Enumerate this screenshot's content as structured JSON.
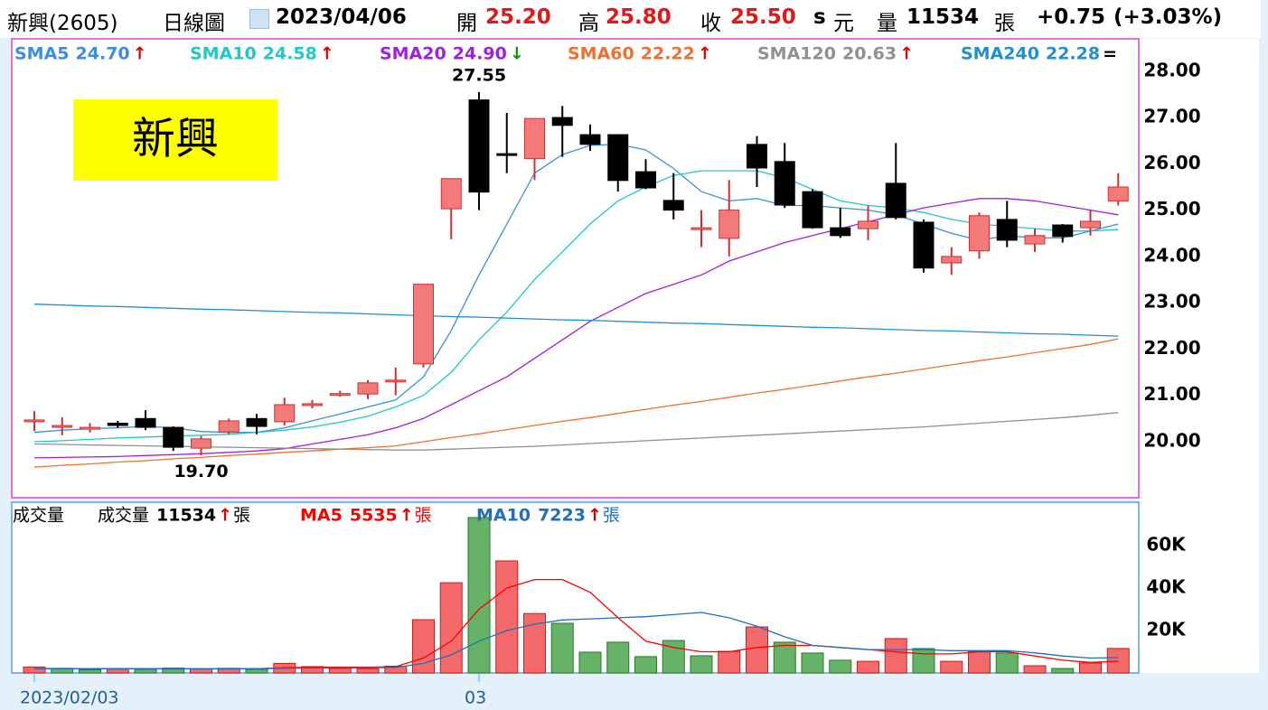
{
  "header": {
    "name": "新興(2605)",
    "period": "日線圖",
    "date": "2023/04/06",
    "open_label": "開",
    "open": "25.20",
    "high_label": "高",
    "high": "25.80",
    "close_label": "收",
    "close": "25.50",
    "s": "s",
    "currency": "元",
    "volume_label": "量",
    "volume": "11534",
    "unit": "張",
    "change": "+0.75",
    "change_pct": "(+3.03%)"
  },
  "chart_data": [
    {
      "type": "candlestick",
      "title": "新興",
      "open": [
        20.45,
        20.33,
        20.29,
        20.4,
        20.5,
        20.31,
        19.86,
        20.21,
        20.5,
        20.43,
        20.78,
        21.0,
        21.03,
        21.31,
        21.68,
        25.03,
        27.38,
        26.2,
        26.11,
        27.0,
        26.63,
        26.63,
        25.83,
        25.21,
        24.6,
        24.39,
        26.42,
        26.05,
        25.4,
        24.62,
        24.6,
        25.58,
        24.74,
        23.86,
        24.12,
        24.8,
        24.27,
        24.68,
        24.62,
        25.2
      ],
      "high": [
        20.66,
        20.53,
        20.4,
        20.45,
        20.68,
        20.33,
        20.12,
        20.5,
        20.6,
        20.95,
        20.9,
        21.1,
        21.33,
        21.6,
        23.4,
        25.68,
        27.55,
        27.1,
        26.98,
        27.25,
        26.85,
        26.63,
        26.1,
        25.8,
        25.0,
        25.65,
        26.6,
        26.45,
        25.45,
        25.05,
        25.1,
        26.45,
        24.8,
        24.2,
        24.95,
        25.2,
        24.6,
        24.7,
        25.0,
        25.8
      ],
      "low": [
        20.23,
        20.14,
        20.2,
        20.3,
        20.25,
        19.8,
        19.7,
        20.16,
        20.16,
        20.35,
        20.72,
        20.97,
        20.92,
        21.0,
        21.6,
        24.37,
        25.0,
        25.8,
        25.65,
        26.15,
        26.28,
        25.4,
        25.45,
        24.8,
        24.2,
        24.0,
        25.5,
        25.05,
        24.6,
        24.4,
        24.35,
        24.8,
        23.65,
        23.6,
        23.95,
        24.2,
        24.1,
        24.3,
        24.45,
        25.1
      ],
      "close": [
        20.45,
        20.33,
        20.29,
        20.35,
        20.31,
        19.88,
        20.06,
        20.45,
        20.33,
        20.8,
        20.8,
        21.02,
        21.27,
        21.31,
        23.4,
        25.68,
        25.39,
        26.18,
        26.98,
        26.83,
        26.42,
        25.64,
        25.48,
        25.0,
        24.6,
        25.0,
        25.91,
        25.11,
        24.62,
        24.45,
        24.76,
        24.84,
        23.75,
        24.0,
        24.88,
        24.35,
        24.45,
        24.43,
        24.76,
        25.5
      ],
      "up_color": "#f47a7a",
      "up_edge": "#d03030",
      "down_color": "#000000",
      "ylim": [
        18.79,
        28.66
      ],
      "yticks": [
        {
          "value": 20,
          "label": "20.00"
        },
        {
          "value": 21,
          "label": "21.00"
        },
        {
          "value": 22,
          "label": "22.00"
        },
        {
          "value": 23,
          "label": "23.00"
        },
        {
          "value": 24,
          "label": "24.00"
        },
        {
          "value": 25,
          "label": "25.00"
        },
        {
          "value": 26,
          "label": "26.00"
        },
        {
          "value": 27,
          "label": "27.00"
        },
        {
          "value": 28,
          "label": "28.00"
        }
      ],
      "annotations": [
        {
          "label": "27.55",
          "value": 27.55
        },
        {
          "label": "19.70",
          "value": 19.7
        }
      ],
      "series": [
        {
          "name": "SMA5",
          "color": "#3c8ee0",
          "value_label": "24.70",
          "arrow": "↑",
          "arrow_color": "#e00000",
          "values": [
            20.2,
            20.25,
            20.28,
            20.3,
            20.33,
            20.3,
            20.22,
            20.2,
            20.2,
            20.3,
            20.45,
            20.6,
            20.75,
            20.9,
            21.4,
            22.4,
            23.6,
            24.7,
            25.8,
            26.2,
            26.4,
            26.42,
            26.3,
            25.9,
            25.4,
            25.2,
            25.25,
            25.1,
            25.1,
            25.05,
            25.0,
            24.9,
            24.7,
            24.5,
            24.35,
            24.45,
            24.4,
            24.4,
            24.55,
            24.7
          ]
        },
        {
          "name": "SMA10",
          "color": "#20c8c8",
          "value_label": "24.58",
          "arrow": "↑",
          "arrow_color": "#e00000",
          "values": [
            20.0,
            20.02,
            20.05,
            20.08,
            20.1,
            20.12,
            20.14,
            20.16,
            20.2,
            20.25,
            20.32,
            20.42,
            20.55,
            20.75,
            21.0,
            21.5,
            22.2,
            22.8,
            23.5,
            24.1,
            24.7,
            25.2,
            25.5,
            25.75,
            25.85,
            25.85,
            25.85,
            25.7,
            25.45,
            25.2,
            25.1,
            25.05,
            24.95,
            24.8,
            24.7,
            24.65,
            24.6,
            24.55,
            24.55,
            24.58
          ]
        },
        {
          "name": "SMA20",
          "color": "#a020e0",
          "value_label": "24.90",
          "arrow": "↓",
          "arrow_color": "#109010",
          "values": [
            19.65,
            19.66,
            19.67,
            19.68,
            19.7,
            19.72,
            19.74,
            19.77,
            19.8,
            19.85,
            19.95,
            20.05,
            20.15,
            20.3,
            20.5,
            20.8,
            21.1,
            21.4,
            21.8,
            22.2,
            22.6,
            22.9,
            23.2,
            23.4,
            23.6,
            23.9,
            24.1,
            24.3,
            24.45,
            24.6,
            24.75,
            24.9,
            25.05,
            25.15,
            25.25,
            25.25,
            25.2,
            25.1,
            25.0,
            24.9
          ]
        },
        {
          "name": "SMA60",
          "color": "#f07030",
          "value_label": "22.22",
          "arrow": "↑",
          "arrow_color": "#e00000",
          "values": [
            19.45,
            19.49,
            19.52,
            19.56,
            19.59,
            19.63,
            19.66,
            19.7,
            19.73,
            19.77,
            19.8,
            19.84,
            19.87,
            19.91,
            20.0,
            20.09,
            20.17,
            20.26,
            20.35,
            20.44,
            20.52,
            20.61,
            20.7,
            20.79,
            20.87,
            20.96,
            21.05,
            21.13,
            21.22,
            21.31,
            21.4,
            21.48,
            21.57,
            21.66,
            21.75,
            21.83,
            21.92,
            22.01,
            22.1,
            22.22
          ]
        },
        {
          "name": "SMA120",
          "color": "#909090",
          "value_label": "20.63",
          "arrow": "↑",
          "arrow_color": "#e00000",
          "values": [
            19.95,
            19.94,
            19.93,
            19.92,
            19.91,
            19.9,
            19.89,
            19.88,
            19.87,
            19.86,
            19.85,
            19.84,
            19.83,
            19.82,
            19.82,
            19.84,
            19.86,
            19.88,
            19.9,
            19.93,
            19.96,
            19.99,
            20.02,
            20.05,
            20.08,
            20.11,
            20.14,
            20.17,
            20.2,
            20.23,
            20.26,
            20.29,
            20.32,
            20.36,
            20.4,
            20.44,
            20.48,
            20.52,
            20.57,
            20.63
          ]
        },
        {
          "name": "SMA240",
          "color": "#2090d0",
          "value_label": "22.28",
          "arrow": "=",
          "arrow_color": "#000000",
          "values": [
            22.97,
            22.95,
            22.93,
            22.92,
            22.9,
            22.88,
            22.86,
            22.85,
            22.83,
            22.81,
            22.79,
            22.78,
            22.76,
            22.74,
            22.72,
            22.7,
            22.69,
            22.67,
            22.65,
            22.63,
            22.62,
            22.6,
            22.58,
            22.56,
            22.55,
            22.53,
            22.51,
            22.49,
            22.47,
            22.46,
            22.44,
            22.42,
            22.4,
            22.39,
            22.37,
            22.35,
            22.33,
            22.32,
            22.3,
            22.28
          ]
        }
      ]
    },
    {
      "type": "bar",
      "title": "成交量",
      "categories": [
        "2023/02/03",
        null,
        null,
        null,
        null,
        null,
        null,
        null,
        null,
        null,
        null,
        null,
        null,
        null,
        null,
        null,
        "03",
        null,
        null,
        null,
        null,
        null,
        null,
        null,
        null,
        null,
        null,
        null,
        null,
        null,
        null,
        null,
        null,
        null,
        null,
        null,
        null,
        null,
        null,
        null
      ],
      "up_color": "#f46a6a",
      "up_edge": "#c02020",
      "down_color": "#66b266",
      "down_edge": "#2a7a2a",
      "ylim": [
        0,
        80000
      ],
      "yticks": [
        {
          "value": 20000,
          "label": "20K"
        },
        {
          "value": 40000,
          "label": "40K"
        },
        {
          "value": 60000,
          "label": "60K"
        }
      ],
      "series": [
        {
          "name": "成交量",
          "color": "#000000",
          "unit": "張",
          "arrow": "↑",
          "values": [
            2800,
            2200,
            1500,
            1800,
            1700,
            2300,
            1900,
            2200,
            1700,
            4500,
            3000,
            2100,
            2000,
            3200,
            25100,
            42500,
            73200,
            52800,
            28000,
            23400,
            9800,
            14500,
            7700,
            15300,
            8100,
            10200,
            21700,
            14500,
            9400,
            6000,
            5500,
            16200,
            11500,
            5500,
            10200,
            9400,
            3400,
            2100,
            4700,
            11534
          ]
        },
        {
          "name": "MA5",
          "color": "#ff0000",
          "unit": "張",
          "arrow": "↑",
          "values": [
            2100,
            2100,
            2000,
            2100,
            2000,
            1900,
            1900,
            1900,
            2000,
            2500,
            2700,
            2700,
            2700,
            3000,
            7000,
            15000,
            30000,
            40000,
            44000,
            44000,
            38000,
            26000,
            15000,
            12000,
            10000,
            10000,
            12000,
            13000,
            13000,
            12000,
            11000,
            10000,
            9000,
            9000,
            10000,
            10000,
            8000,
            6000,
            5000,
            5535
          ]
        },
        {
          "name": "MA10",
          "color": "#1f6fbf",
          "unit": "張",
          "arrow": "↑",
          "values": [
            2000,
            2000,
            2000,
            2000,
            2000,
            2000,
            2000,
            2000,
            2000,
            2200,
            2300,
            2300,
            2400,
            2600,
            4500,
            8500,
            15000,
            20000,
            23000,
            25000,
            25500,
            26000,
            26500,
            27500,
            28500,
            26000,
            22000,
            17000,
            13000,
            12000,
            11000,
            11000,
            11000,
            10500,
            10500,
            10500,
            9500,
            8000,
            7000,
            7223
          ]
        }
      ]
    }
  ]
}
